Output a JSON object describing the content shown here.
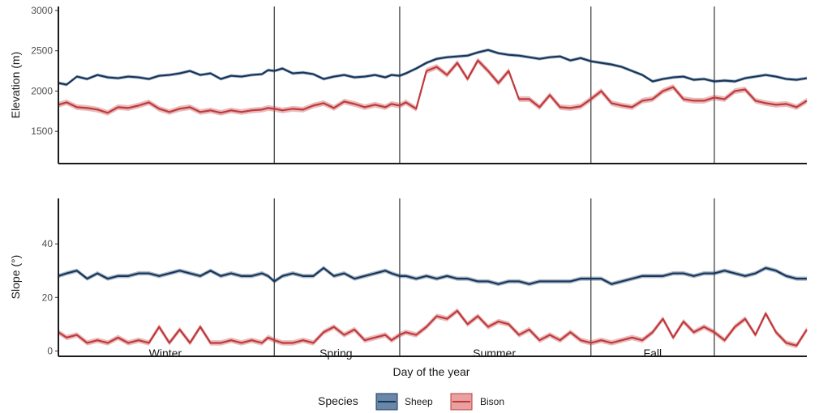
{
  "chart_data": [
    {
      "type": "line",
      "panel": "elevation",
      "ylabel": "Elevation (m)",
      "ylim": [
        1100,
        3050
      ],
      "yticks": [
        1500,
        2000,
        2500,
        3000
      ],
      "x_range": [
        1,
        365
      ],
      "season_boundaries": [
        106,
        167,
        260,
        320
      ],
      "series": [
        {
          "name": "Sheep",
          "x": [
            1,
            5,
            10,
            15,
            20,
            25,
            30,
            35,
            40,
            45,
            50,
            55,
            60,
            65,
            70,
            75,
            80,
            85,
            90,
            95,
            100,
            103,
            106,
            110,
            115,
            120,
            125,
            130,
            135,
            140,
            145,
            150,
            155,
            160,
            163,
            167,
            170,
            175,
            180,
            185,
            190,
            195,
            200,
            205,
            210,
            215,
            220,
            225,
            230,
            235,
            240,
            245,
            250,
            255,
            260,
            265,
            270,
            275,
            280,
            285,
            290,
            295,
            300,
            305,
            310,
            315,
            320,
            325,
            330,
            335,
            340,
            345,
            350,
            355,
            360,
            365
          ],
          "values": [
            2100,
            2080,
            2180,
            2150,
            2200,
            2170,
            2160,
            2180,
            2170,
            2150,
            2190,
            2200,
            2220,
            2250,
            2200,
            2220,
            2150,
            2190,
            2180,
            2200,
            2210,
            2260,
            2250,
            2280,
            2220,
            2230,
            2210,
            2150,
            2180,
            2200,
            2170,
            2180,
            2200,
            2170,
            2200,
            2190,
            2220,
            2280,
            2350,
            2400,
            2420,
            2430,
            2440,
            2480,
            2510,
            2470,
            2450,
            2440,
            2420,
            2400,
            2420,
            2430,
            2380,
            2410,
            2370,
            2350,
            2330,
            2300,
            2250,
            2200,
            2120,
            2150,
            2170,
            2180,
            2140,
            2150,
            2120,
            2130,
            2120,
            2160,
            2180,
            2200,
            2180,
            2150,
            2140,
            2160
          ],
          "color": "#16365c",
          "band": 20
        },
        {
          "name": "Bison",
          "x": [
            1,
            5,
            10,
            15,
            20,
            25,
            30,
            35,
            40,
            45,
            50,
            55,
            60,
            65,
            70,
            75,
            80,
            85,
            90,
            95,
            100,
            103,
            106,
            110,
            115,
            120,
            125,
            130,
            135,
            140,
            145,
            150,
            155,
            160,
            163,
            167,
            170,
            175,
            180,
            185,
            190,
            195,
            200,
            205,
            210,
            215,
            220,
            225,
            230,
            235,
            240,
            245,
            250,
            255,
            260,
            265,
            270,
            275,
            280,
            285,
            290,
            295,
            300,
            305,
            310,
            315,
            320,
            325,
            330,
            335,
            340,
            345,
            350,
            355,
            360,
            365
          ],
          "values": [
            1830,
            1860,
            1800,
            1790,
            1770,
            1730,
            1800,
            1790,
            1820,
            1860,
            1780,
            1740,
            1780,
            1800,
            1740,
            1760,
            1730,
            1760,
            1740,
            1760,
            1770,
            1790,
            1780,
            1760,
            1780,
            1770,
            1820,
            1850,
            1790,
            1870,
            1840,
            1800,
            1830,
            1800,
            1840,
            1820,
            1860,
            1780,
            2250,
            2300,
            2200,
            2350,
            2150,
            2380,
            2250,
            2100,
            2250,
            1900,
            1900,
            1800,
            1950,
            1800,
            1790,
            1810,
            1900,
            2000,
            1850,
            1820,
            1800,
            1880,
            1900,
            2000,
            2050,
            1900,
            1880,
            1880,
            1920,
            1900,
            2000,
            2020,
            1880,
            1850,
            1830,
            1840,
            1800,
            1880
          ],
          "color": "#c0393b",
          "band": 35
        }
      ]
    },
    {
      "type": "line",
      "panel": "slope",
      "ylabel": "Slope (°)",
      "xlabel": "Day of the year",
      "ylim": [
        -2,
        57
      ],
      "yticks": [
        0,
        20,
        40
      ],
      "x_range": [
        1,
        365
      ],
      "season_boundaries": [
        106,
        167,
        260,
        320
      ],
      "seasons": [
        "Winter",
        "Spring",
        "Summer",
        "Fall"
      ],
      "season_centers": [
        53,
        136,
        213,
        290
      ],
      "series": [
        {
          "name": "Sheep",
          "x": [
            1,
            5,
            10,
            15,
            20,
            25,
            30,
            35,
            40,
            45,
            50,
            55,
            60,
            65,
            70,
            75,
            80,
            85,
            90,
            95,
            100,
            103,
            106,
            110,
            115,
            120,
            125,
            130,
            135,
            140,
            145,
            150,
            155,
            160,
            163,
            167,
            170,
            175,
            180,
            185,
            190,
            195,
            200,
            205,
            210,
            215,
            220,
            225,
            230,
            235,
            240,
            245,
            250,
            255,
            260,
            265,
            270,
            275,
            280,
            285,
            290,
            295,
            300,
            305,
            310,
            315,
            320,
            325,
            330,
            335,
            340,
            345,
            350,
            355,
            360,
            365
          ],
          "values": [
            28,
            29,
            30,
            27,
            29,
            27,
            28,
            28,
            29,
            29,
            28,
            29,
            30,
            29,
            28,
            30,
            28,
            29,
            28,
            28,
            29,
            28,
            26,
            28,
            29,
            28,
            28,
            31,
            28,
            29,
            27,
            28,
            29,
            30,
            29,
            28,
            28,
            27,
            28,
            27,
            28,
            27,
            27,
            26,
            26,
            25,
            26,
            26,
            25,
            26,
            26,
            26,
            26,
            27,
            27,
            27,
            25,
            26,
            27,
            28,
            28,
            28,
            29,
            29,
            28,
            29,
            29,
            30,
            29,
            28,
            29,
            31,
            30,
            28,
            27,
            27
          ],
          "color": "#16365c",
          "band": 0.8
        },
        {
          "name": "Bison",
          "x": [
            1,
            5,
            10,
            15,
            20,
            25,
            30,
            35,
            40,
            45,
            50,
            55,
            60,
            65,
            70,
            75,
            80,
            85,
            90,
            95,
            100,
            103,
            106,
            110,
            115,
            120,
            125,
            130,
            135,
            140,
            145,
            150,
            155,
            160,
            163,
            167,
            170,
            175,
            180,
            185,
            190,
            195,
            200,
            205,
            210,
            215,
            220,
            225,
            230,
            235,
            240,
            245,
            250,
            255,
            260,
            265,
            270,
            275,
            280,
            285,
            290,
            295,
            300,
            305,
            310,
            315,
            320,
            325,
            330,
            335,
            340,
            345,
            350,
            355,
            360,
            365
          ],
          "values": [
            7,
            5,
            6,
            3,
            4,
            3,
            5,
            3,
            4,
            3,
            9,
            3,
            8,
            3,
            9,
            3,
            3,
            4,
            3,
            4,
            3,
            5,
            4,
            3,
            3,
            4,
            3,
            7,
            9,
            6,
            8,
            4,
            5,
            6,
            4,
            6,
            7,
            6,
            9,
            13,
            12,
            15,
            10,
            13,
            9,
            11,
            10,
            6,
            8,
            4,
            6,
            4,
            7,
            4,
            3,
            4,
            3,
            4,
            5,
            4,
            7,
            12,
            5,
            11,
            7,
            9,
            7,
            4,
            9,
            12,
            6,
            14,
            7,
            3,
            2,
            8
          ],
          "color": "#c0393b",
          "band": 1.0
        }
      ]
    }
  ],
  "legend": {
    "title": "Species",
    "placement": "bottom",
    "entries": [
      {
        "name": "Sheep",
        "color": "#16365c",
        "fill": "#6b87a8"
      },
      {
        "name": "Bison",
        "color": "#c0393b",
        "fill": "#e8a0a0"
      }
    ]
  }
}
